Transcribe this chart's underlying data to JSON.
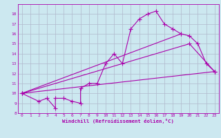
{
  "xlabel": "Windchill (Refroidissement éolien,°C)",
  "bg_color": "#cce8f0",
  "grid_color": "#b0b8cc",
  "line_color": "#aa00aa",
  "xlim": [
    -0.5,
    23.5
  ],
  "ylim": [
    8,
    19
  ],
  "xticks": [
    0,
    1,
    2,
    3,
    4,
    5,
    6,
    7,
    8,
    9,
    10,
    11,
    12,
    13,
    14,
    15,
    16,
    17,
    18,
    19,
    20,
    21,
    22,
    23
  ],
  "yticks": [
    8,
    9,
    10,
    11,
    12,
    13,
    14,
    15,
    16,
    17,
    18
  ],
  "line1_x": [
    0,
    2,
    3,
    4,
    4,
    5,
    6,
    7,
    7,
    8,
    9,
    10,
    11,
    12,
    13,
    14,
    15,
    16,
    17,
    18,
    19,
    20,
    21,
    22,
    23
  ],
  "line1_y": [
    10.0,
    9.2,
    9.5,
    8.5,
    9.5,
    9.5,
    9.2,
    9.0,
    10.5,
    11.0,
    11.0,
    13.0,
    14.0,
    13.0,
    16.5,
    17.5,
    18.0,
    18.3,
    17.0,
    16.5,
    16.0,
    15.8,
    15.0,
    13.0,
    12.2
  ],
  "line2_x": [
    0,
    23
  ],
  "line2_y": [
    10.0,
    12.2
  ],
  "line3_x": [
    0,
    19
  ],
  "line3_y": [
    10.0,
    16.0
  ],
  "line4_x": [
    0,
    20,
    23
  ],
  "line4_y": [
    10.0,
    15.0,
    12.2
  ]
}
